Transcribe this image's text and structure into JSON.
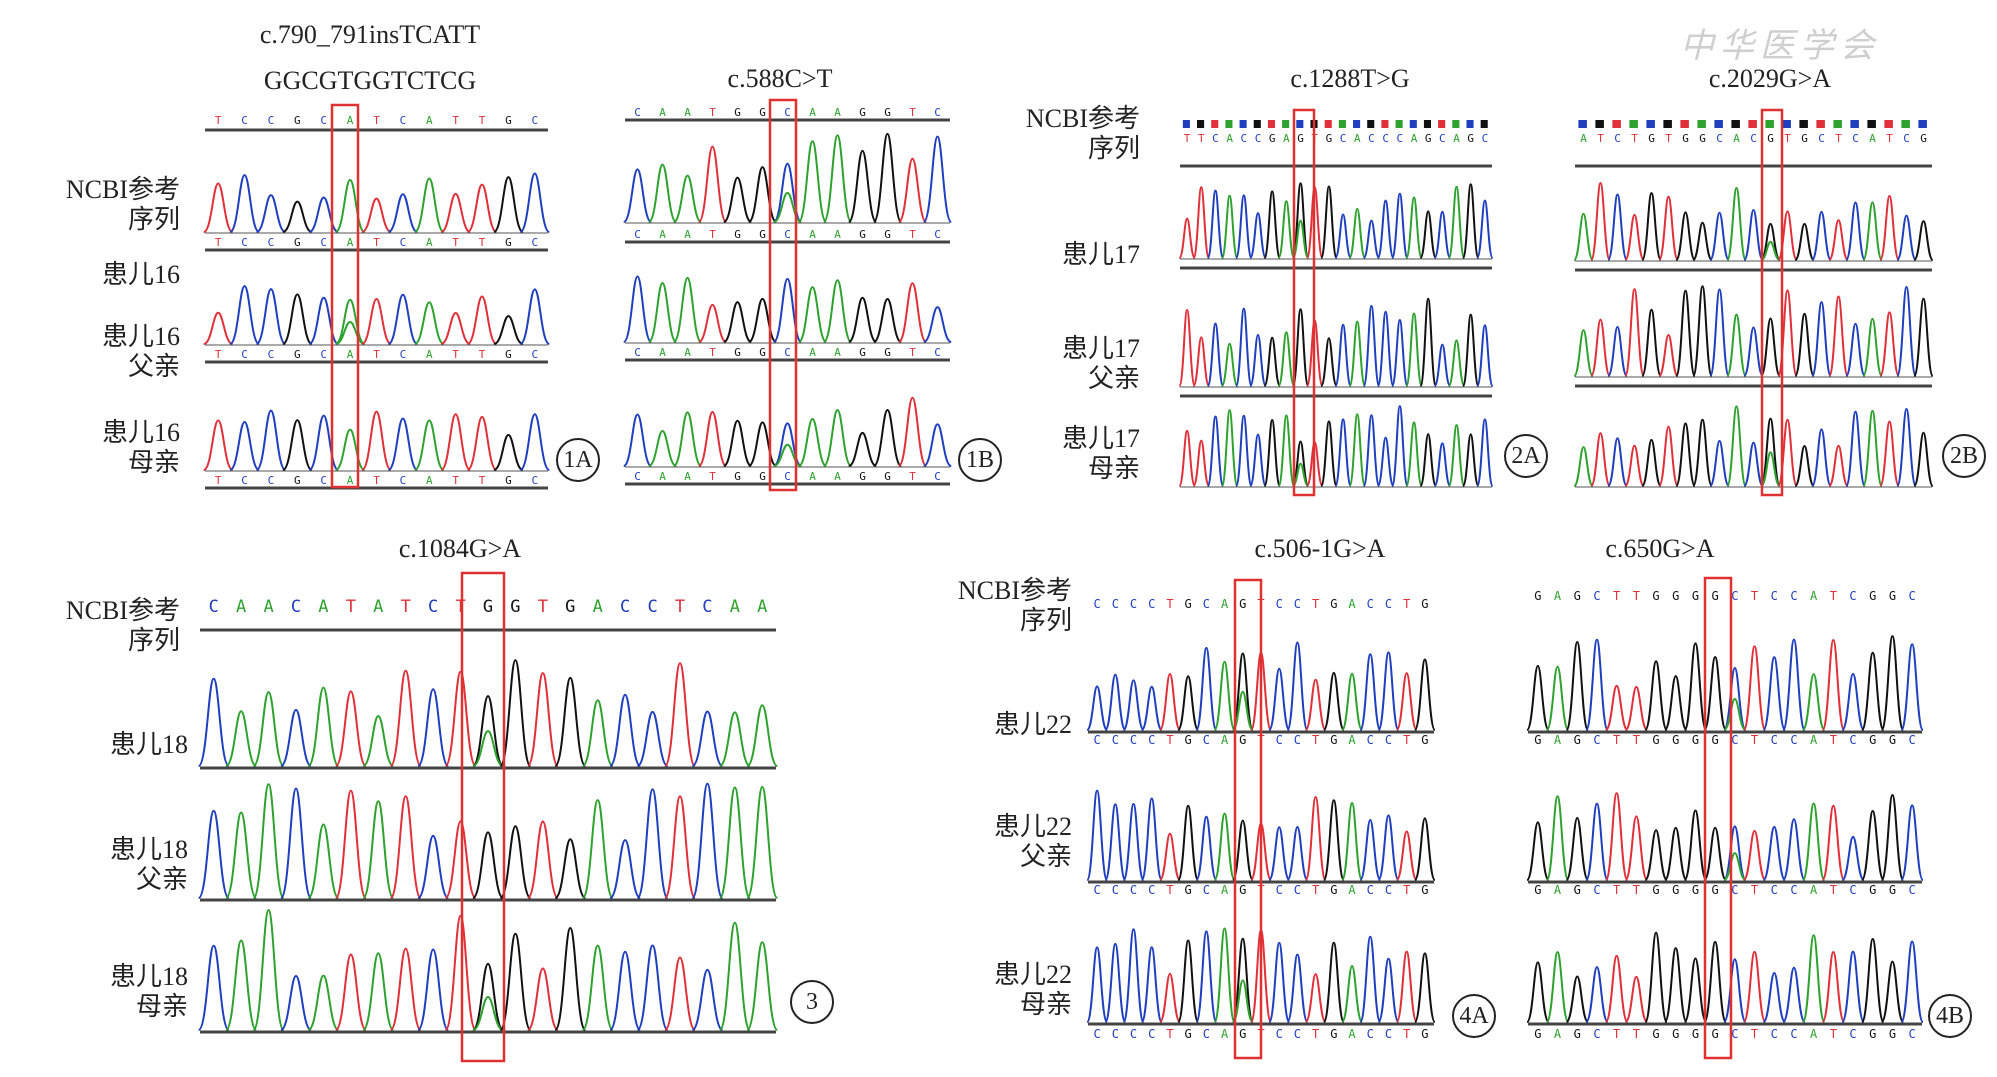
{
  "watermark": "中华医学会",
  "colors": {
    "A": "#2ea22e",
    "C": "#1f3fbf",
    "G": "#111111",
    "T": "#e0303a",
    "highlight": "#e03131"
  },
  "panels": [
    {
      "id": "1A",
      "titles": [
        "c.790_791insTCATT",
        "GGCGTGGTCTCG"
      ],
      "ref_sequence": "TCCGCATCATTGC",
      "row_labels": [
        [
          "NCBI参考",
          "序列"
        ],
        [
          "患儿16"
        ],
        [
          "患儿16",
          "父亲"
        ],
        [
          "患儿16",
          "母亲"
        ]
      ],
      "badge": "1A"
    },
    {
      "id": "1B",
      "titles": [
        "c.588C>T"
      ],
      "ref_sequence": "CAATGGCAAGGTC",
      "row_labels": [],
      "badge": "1B"
    },
    {
      "id": "2A",
      "titles": [
        "c.1288T>G"
      ],
      "ref_sequence": "TTCACCGAGTGCACCCAGCAGC",
      "row_labels": [
        [
          "NCBI参考",
          "序列"
        ],
        [
          "患儿17"
        ],
        [
          "患儿17",
          "父亲"
        ],
        [
          "患儿17",
          "母亲"
        ]
      ],
      "badge": "2A"
    },
    {
      "id": "2B",
      "titles": [
        "c.2029G>A"
      ],
      "ref_sequence": "ATCTGTGGCACGTGCTCATCG",
      "row_labels": [],
      "badge": "2B"
    },
    {
      "id": "3",
      "titles": [
        "c.1084G>A"
      ],
      "ref_sequence": "CAACATATCTGGTGACCTCAA",
      "row_labels": [
        [
          "NCBI参考",
          "序列"
        ],
        [
          "患儿18"
        ],
        [
          "患儿18",
          "父亲"
        ],
        [
          "患儿18",
          "母亲"
        ]
      ],
      "badge": "3"
    },
    {
      "id": "4A",
      "titles": [
        "c.506-1G>A"
      ],
      "ref_sequence": "CCCCTGCAGTCCTGACCTG",
      "row_labels": [
        [
          "NCBI参考",
          "序列"
        ],
        [
          "患儿22"
        ],
        [
          "患儿22",
          "父亲"
        ],
        [
          "患儿22",
          "母亲"
        ]
      ],
      "badge": "4A"
    },
    {
      "id": "4B",
      "titles": [
        "c.650G>A"
      ],
      "ref_sequence": "GAGCTTGGGGCTCCATCGGC",
      "row_labels": [],
      "badge": "4B"
    }
  ]
}
